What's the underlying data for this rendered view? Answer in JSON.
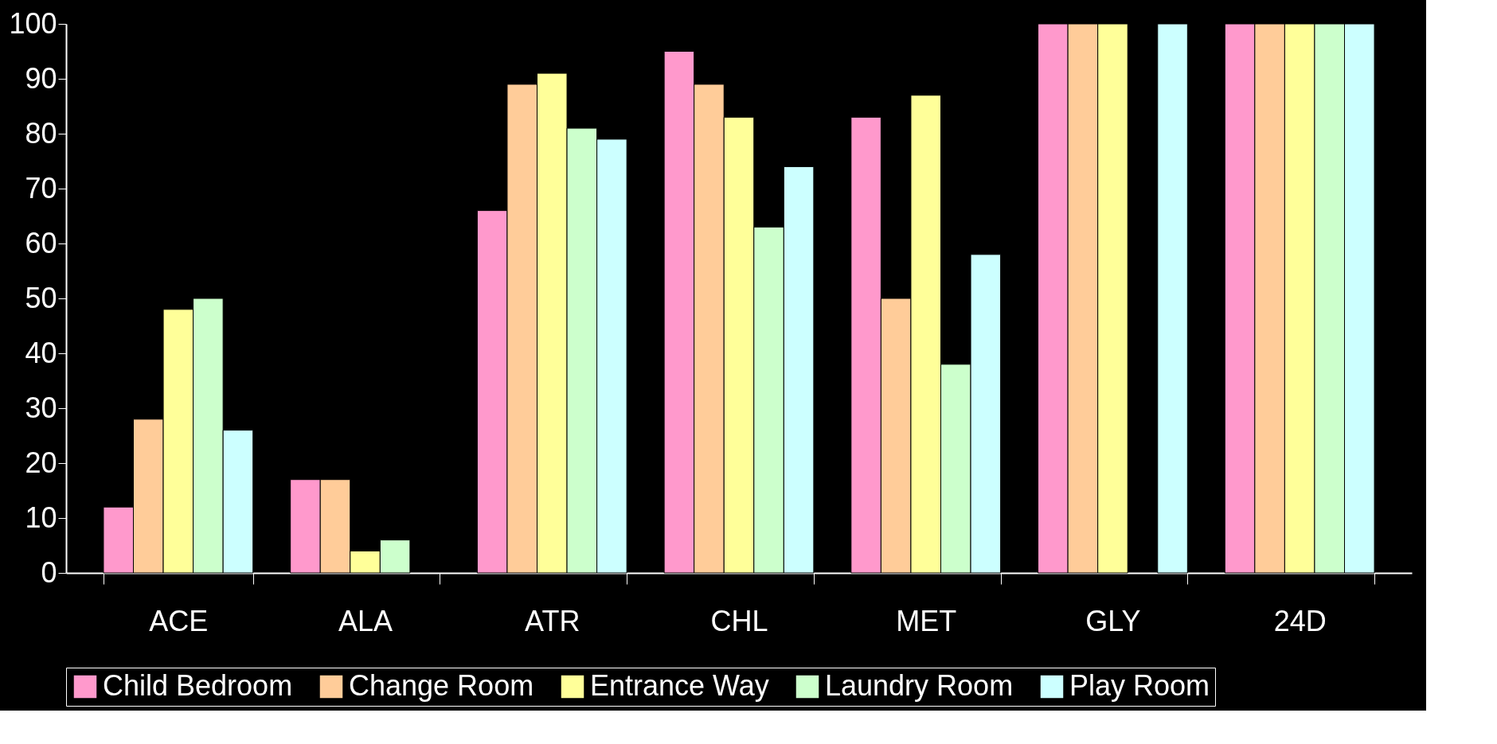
{
  "chart_data": {
    "type": "bar",
    "categories": [
      "ACE",
      "ALA",
      "ATR",
      "CHL",
      "MET",
      "GLY",
      "24D"
    ],
    "series": [
      {
        "name": "Child Bedroom",
        "color": "#ff99cc",
        "values": [
          12,
          17,
          66,
          95,
          83,
          100,
          100
        ]
      },
      {
        "name": "Change Room",
        "color": "#ffcc99",
        "values": [
          28,
          17,
          89,
          89,
          50,
          100,
          100
        ]
      },
      {
        "name": "Entrance Way",
        "color": "#ffff99",
        "values": [
          48,
          4,
          91,
          83,
          87,
          100,
          100
        ]
      },
      {
        "name": "Laundry Room",
        "color": "#ccffcc",
        "values": [
          50,
          6,
          81,
          63,
          38,
          null,
          100
        ]
      },
      {
        "name": "Play Room",
        "color": "#ccffff",
        "values": [
          26,
          null,
          79,
          74,
          58,
          100,
          100
        ]
      }
    ],
    "ylim": [
      0,
      100
    ],
    "yticks": [
      0,
      10,
      20,
      30,
      40,
      50,
      60,
      70,
      80,
      90,
      100
    ],
    "grid": false,
    "legend": "bottom"
  }
}
